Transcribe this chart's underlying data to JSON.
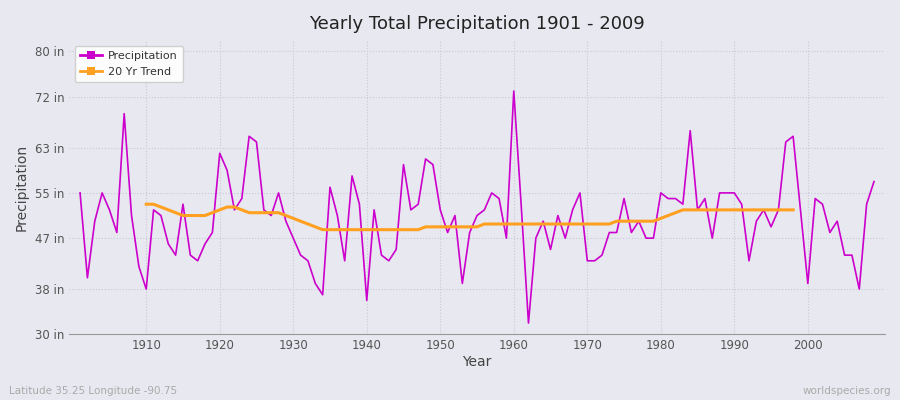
{
  "title": "Yearly Total Precipitation 1901 - 2009",
  "xlabel": "Year",
  "ylabel": "Precipitation",
  "subtitle_left": "Latitude 35.25 Longitude -90.75",
  "subtitle_right": "worldspecies.org",
  "ylim": [
    30,
    82
  ],
  "yticks": [
    30,
    38,
    47,
    55,
    63,
    72,
    80
  ],
  "ytick_labels": [
    "30 in",
    "38 in",
    "47 in",
    "55 in",
    "63 in",
    "72 in",
    "80 in"
  ],
  "xlim": [
    1899.5,
    2010.5
  ],
  "xticks": [
    1910,
    1920,
    1930,
    1940,
    1950,
    1960,
    1970,
    1980,
    1990,
    2000
  ],
  "precip_color": "#CC00CC",
  "trend_color": "#FFA020",
  "bg_color": "#E8E8F0",
  "grid_color": "#C8C8D8",
  "years": [
    1901,
    1902,
    1903,
    1904,
    1905,
    1906,
    1907,
    1908,
    1909,
    1910,
    1911,
    1912,
    1913,
    1914,
    1915,
    1916,
    1917,
    1918,
    1919,
    1920,
    1921,
    1922,
    1923,
    1924,
    1925,
    1926,
    1927,
    1928,
    1929,
    1930,
    1931,
    1932,
    1933,
    1934,
    1935,
    1936,
    1937,
    1938,
    1939,
    1940,
    1941,
    1942,
    1943,
    1944,
    1945,
    1946,
    1947,
    1948,
    1949,
    1950,
    1951,
    1952,
    1953,
    1954,
    1955,
    1956,
    1957,
    1958,
    1959,
    1960,
    1961,
    1962,
    1963,
    1964,
    1965,
    1966,
    1967,
    1968,
    1969,
    1970,
    1971,
    1972,
    1973,
    1974,
    1975,
    1976,
    1977,
    1978,
    1979,
    1980,
    1981,
    1982,
    1983,
    1984,
    1985,
    1986,
    1987,
    1988,
    1989,
    1990,
    1991,
    1992,
    1993,
    1994,
    1995,
    1996,
    1997,
    1998,
    1999,
    2000,
    2001,
    2002,
    2003,
    2004,
    2005,
    2006,
    2007,
    2008,
    2009
  ],
  "precip": [
    55,
    40,
    50,
    55,
    52,
    48,
    69,
    51,
    42,
    38,
    52,
    51,
    46,
    44,
    53,
    44,
    43,
    46,
    48,
    62,
    59,
    52,
    54,
    65,
    64,
    52,
    51,
    55,
    50,
    47,
    44,
    43,
    39,
    37,
    56,
    51,
    43,
    58,
    53,
    36,
    52,
    44,
    43,
    45,
    60,
    52,
    53,
    61,
    60,
    52,
    48,
    51,
    39,
    48,
    51,
    52,
    55,
    54,
    47,
    73,
    53,
    32,
    47,
    50,
    45,
    51,
    47,
    52,
    55,
    43,
    43,
    44,
    48,
    48,
    54,
    48,
    50,
    47,
    47,
    55,
    54,
    54,
    53,
    66,
    52,
    54,
    47,
    55,
    55,
    55,
    53,
    43,
    50,
    52,
    49,
    52,
    64,
    65,
    52,
    39,
    54,
    53,
    48,
    50,
    44,
    44,
    38,
    53,
    57
  ],
  "trend": [
    null,
    null,
    null,
    null,
    null,
    null,
    null,
    null,
    null,
    53,
    53,
    52.5,
    52,
    51.5,
    51,
    51,
    51,
    51,
    51.5,
    52,
    52.5,
    52.5,
    52,
    51.5,
    51.5,
    51.5,
    51.5,
    51.5,
    51,
    50.5,
    50,
    49.5,
    49,
    48.5,
    48.5,
    48.5,
    48.5,
    48.5,
    48.5,
    48.5,
    48.5,
    48.5,
    48.5,
    48.5,
    48.5,
    48.5,
    48.5,
    49,
    49,
    49,
    49,
    49,
    49,
    49,
    49,
    49.5,
    49.5,
    49.5,
    49.5,
    49.5,
    49.5,
    49.5,
    49.5,
    49.5,
    49.5,
    49.5,
    49.5,
    49.5,
    49.5,
    49.5,
    49.5,
    49.5,
    49.5,
    50,
    50,
    50,
    50,
    50,
    50,
    50.5,
    51,
    51.5,
    52,
    52,
    52,
    52,
    52,
    52,
    52,
    52,
    52,
    52,
    52,
    52,
    52,
    52,
    52,
    52,
    null,
    null,
    null,
    null,
    null,
    null,
    null,
    null,
    null
  ]
}
